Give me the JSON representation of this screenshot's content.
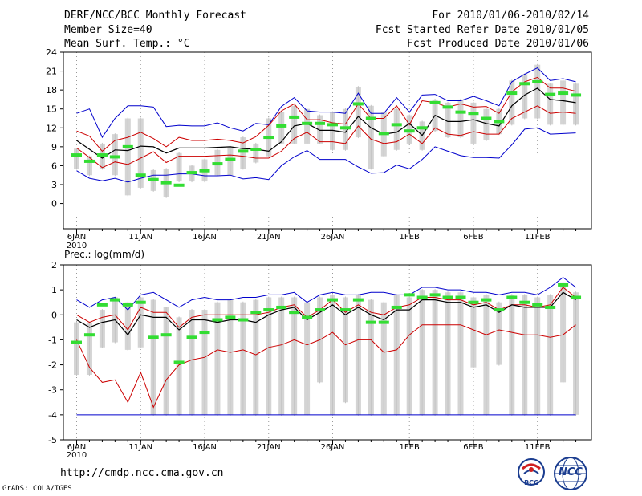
{
  "header": {
    "title": "DERF/NCC/BCC Monthly Forecast",
    "member_size": "Member Size=40",
    "variable": "Mean Surf. Temp.: °C",
    "period": "For 2010/01/06-2010/02/14",
    "start_date": "Fcst Started Refer Date 2010/01/05",
    "produced_date": "Fcst Produced Date 2010/01/06"
  },
  "footer": {
    "url": "http://cmdp.ncc.cma.gov.cn",
    "credit": "GrADS: COLA/IGES",
    "logo_bcc": "BCC",
    "logo_ncc": "NCC"
  },
  "colors": {
    "envelope": "#0000cc",
    "spread": "#cc0000",
    "mean": "#000000",
    "box": "#d4d4d4",
    "marker": "#33dd33"
  },
  "chart_data": [
    {
      "type": "line",
      "title": "Mean Surf. Temp.: °C",
      "x_tick_labels": [
        "6JAN",
        "11JAN",
        "16JAN",
        "21JAN",
        "26JAN",
        "1FEB",
        "6FEB",
        "11FEB"
      ],
      "x_tick_days": [
        0,
        5,
        10,
        15,
        20,
        26,
        31,
        36
      ],
      "x_year_label": "2010",
      "x_range": [
        -1,
        39.5
      ],
      "ylim": [
        -4,
        24
      ],
      "y_ticks": [
        0,
        3,
        6,
        9,
        12,
        15,
        18,
        21,
        24
      ],
      "days": [
        0,
        1,
        2,
        3,
        4,
        5,
        6,
        7,
        8,
        9,
        10,
        11,
        12,
        13,
        14,
        15,
        16,
        17,
        18,
        19,
        20,
        21,
        22,
        23,
        24,
        25,
        26,
        27,
        28,
        29,
        30,
        31,
        32,
        33,
        34,
        35,
        36,
        37,
        38,
        39
      ],
      "series": [
        {
          "name": "max",
          "color": "blue",
          "values": [
            14.3,
            15,
            10.5,
            13.5,
            15.5,
            15.5,
            15.3,
            12.2,
            12.4,
            12.3,
            12.3,
            12.8,
            12,
            11.5,
            12.7,
            12.5,
            15.4,
            16.8,
            14.7,
            14.5,
            14.5,
            14.3,
            17.5,
            14.3,
            14.3,
            16.8,
            14.5,
            17.2,
            17.3,
            16.3,
            16.3,
            17,
            16.3,
            15.5,
            19.3,
            20.5,
            21.5,
            19.5,
            19.8,
            19.3
          ]
        },
        {
          "name": "upper",
          "color": "red",
          "values": [
            11.5,
            10.7,
            8.3,
            10,
            10.5,
            11.3,
            10.3,
            9,
            10.5,
            10,
            10,
            10.2,
            10,
            9.6,
            10.6,
            12.4,
            14.7,
            15.8,
            13.3,
            13.3,
            12.8,
            12.6,
            15.8,
            13.5,
            13.5,
            15.5,
            12.5,
            16.3,
            16,
            15.3,
            15.8,
            15.3,
            15.4,
            14.3,
            17.7,
            19.3,
            20,
            18.3,
            18.3,
            17.8
          ]
        },
        {
          "name": "mean",
          "color": "black",
          "values": [
            10,
            8.6,
            7.2,
            8.5,
            8.4,
            9.1,
            9,
            8,
            8.8,
            8.8,
            8.8,
            8.9,
            9,
            8.7,
            8.6,
            8.3,
            9.8,
            12.3,
            12.7,
            11.6,
            11.6,
            11.3,
            13.8,
            12,
            11,
            11.3,
            12.7,
            10.8,
            14,
            13,
            13,
            13.3,
            12.7,
            12.3,
            15.5,
            17.2,
            18.3,
            16.5,
            16.3,
            16
          ]
        },
        {
          "name": "lower",
          "color": "red",
          "values": [
            8.8,
            7.3,
            5.7,
            6.6,
            6.2,
            7.2,
            8.2,
            6.5,
            7.5,
            7.5,
            7.5,
            7.6,
            7.7,
            7.5,
            7.2,
            7.2,
            8.3,
            10.3,
            11.3,
            9.8,
            9.8,
            9.5,
            12.3,
            10.2,
            9.5,
            9.8,
            11,
            9.5,
            12,
            11,
            10.8,
            11.4,
            11,
            11,
            13.5,
            14.5,
            15.5,
            14.3,
            14.5,
            14.3
          ]
        },
        {
          "name": "min",
          "color": "blue",
          "values": [
            5.2,
            4,
            3.6,
            4,
            3.4,
            4,
            4.5,
            4.5,
            4.7,
            4.7,
            4.4,
            4.4,
            4.5,
            3.9,
            4.1,
            3.8,
            6,
            7.4,
            8.4,
            7,
            7,
            7,
            5.8,
            4.8,
            4.9,
            6.1,
            5.5,
            7,
            9,
            8.3,
            7.6,
            7.3,
            7.3,
            7.2,
            9.3,
            11.8,
            12,
            11,
            11.1,
            11.2
          ]
        },
        {
          "name": "observed_marker",
          "color": "green",
          "values": [
            7.7,
            6.7,
            7.7,
            7.4,
            9,
            4.5,
            3.8,
            3.3,
            2.9,
            4.9,
            5.2,
            6.3,
            7,
            8.3,
            8.6,
            10.5,
            12.3,
            13.7,
            12.7,
            12.7,
            12.5,
            12,
            15.8,
            13.5,
            11.1,
            12.5,
            11.5,
            12,
            16,
            15.3,
            14.5,
            14.3,
            13.5,
            13,
            17.5,
            19,
            19.3,
            17.3,
            17.5,
            17.2
          ]
        }
      ],
      "boxes": [
        {
          "day": 0,
          "low": 5.5,
          "high": 8.7
        },
        {
          "day": 1,
          "low": 4.5,
          "high": 7.5
        },
        {
          "day": 2,
          "low": 5.5,
          "high": 9.5
        },
        {
          "day": 3,
          "low": 4.5,
          "high": 11
        },
        {
          "day": 4,
          "low": 1.3,
          "high": 13.5
        },
        {
          "day": 5,
          "low": 2.5,
          "high": 13.5
        },
        {
          "day": 6,
          "low": 2,
          "high": 5.3
        },
        {
          "day": 7,
          "low": 1,
          "high": 5.5
        },
        {
          "day": 8,
          "low": 3.5,
          "high": 8
        },
        {
          "day": 9,
          "low": 3.5,
          "high": 6
        },
        {
          "day": 10,
          "low": 3.5,
          "high": 7
        },
        {
          "day": 11,
          "low": 4.5,
          "high": 8.5
        },
        {
          "day": 12,
          "low": 4.5,
          "high": 9
        },
        {
          "day": 13,
          "low": 5.5,
          "high": 10.5
        },
        {
          "day": 14,
          "low": 6.5,
          "high": 9.5
        },
        {
          "day": 15,
          "low": 7.5,
          "high": 13.5
        },
        {
          "day": 16,
          "low": 9.5,
          "high": 14.5
        },
        {
          "day": 17,
          "low": 9.5,
          "high": 15.5
        },
        {
          "day": 18,
          "low": 9.5,
          "high": 15
        },
        {
          "day": 19,
          "low": 9.5,
          "high": 14
        },
        {
          "day": 20,
          "low": 8.5,
          "high": 14.5
        },
        {
          "day": 21,
          "low": 8.5,
          "high": 15
        },
        {
          "day": 22,
          "low": 10.5,
          "high": 18.5
        },
        {
          "day": 23,
          "low": 5.5,
          "high": 15.5
        },
        {
          "day": 24,
          "low": 7.5,
          "high": 14.5
        },
        {
          "day": 25,
          "low": 8.5,
          "high": 15
        },
        {
          "day": 26,
          "low": 9.5,
          "high": 14
        },
        {
          "day": 27,
          "low": 8.5,
          "high": 13
        },
        {
          "day": 28,
          "low": 11.5,
          "high": 16.5
        },
        {
          "day": 29,
          "low": 10.5,
          "high": 16
        },
        {
          "day": 30,
          "low": 10.5,
          "high": 16.5
        },
        {
          "day": 31,
          "low": 9.5,
          "high": 16
        },
        {
          "day": 32,
          "low": 10,
          "high": 15
        },
        {
          "day": 33,
          "low": 11,
          "high": 15
        },
        {
          "day": 34,
          "low": 12.5,
          "high": 19.5
        },
        {
          "day": 35,
          "low": 13.5,
          "high": 20.5
        },
        {
          "day": 36,
          "low": 13.5,
          "high": 22
        },
        {
          "day": 37,
          "low": 12.5,
          "high": 19
        },
        {
          "day": 38,
          "low": 12.5,
          "high": 19.5
        },
        {
          "day": 39,
          "low": 12.5,
          "high": 19
        }
      ]
    },
    {
      "type": "line",
      "title": "Prec.: log(mm/d)",
      "x_tick_labels": [
        "6JAN",
        "11JAN",
        "16JAN",
        "21JAN",
        "26JAN",
        "1FEB",
        "6FEB",
        "11FEB"
      ],
      "x_tick_days": [
        0,
        5,
        10,
        15,
        20,
        26,
        31,
        36
      ],
      "x_year_label": "2010",
      "x_range": [
        -1,
        39.5
      ],
      "ylim": [
        -5,
        2
      ],
      "y_ticks": [
        -5,
        -4,
        -3,
        -2,
        -1,
        0,
        1,
        2
      ],
      "days": [
        0,
        1,
        2,
        3,
        4,
        5,
        6,
        7,
        8,
        9,
        10,
        11,
        12,
        13,
        14,
        15,
        16,
        17,
        18,
        19,
        20,
        21,
        22,
        23,
        24,
        25,
        26,
        27,
        28,
        29,
        30,
        31,
        32,
        33,
        34,
        35,
        36,
        37,
        38,
        39
      ],
      "series": [
        {
          "name": "max",
          "color": "blue",
          "values": [
            0.6,
            0.3,
            0.6,
            0.7,
            0.2,
            0.8,
            0.9,
            0.6,
            0.3,
            0.6,
            0.7,
            0.6,
            0.6,
            0.7,
            0.7,
            0.8,
            0.8,
            0.9,
            0.5,
            0.8,
            0.9,
            0.8,
            0.8,
            0.9,
            0.9,
            0.8,
            0.8,
            1.1,
            1.1,
            1,
            1,
            0.9,
            0.9,
            0.8,
            0.9,
            0.9,
            0.8,
            1.1,
            1.5,
            1.1
          ]
        },
        {
          "name": "upper",
          "color": "red",
          "values": [
            0,
            -0.3,
            -0.1,
            0,
            -0.6,
            0.3,
            0.1,
            0.1,
            -0.5,
            -0.1,
            0,
            0,
            0,
            0,
            0,
            0.1,
            0.3,
            0.4,
            -0.1,
            0.2,
            0.6,
            0.1,
            0.4,
            0.1,
            0,
            0.3,
            0.4,
            0.7,
            0.7,
            0.6,
            0.6,
            0.4,
            0.5,
            0.2,
            0.4,
            0.4,
            0.3,
            0.4,
            1.1,
            0.7
          ]
        },
        {
          "name": "mean",
          "color": "black",
          "values": [
            -0.2,
            -0.5,
            -0.3,
            -0.2,
            -0.8,
            0,
            -0.1,
            -0.1,
            -0.6,
            -0.2,
            -0.2,
            -0.3,
            -0.2,
            -0.2,
            -0.3,
            0,
            0.2,
            0.3,
            -0.2,
            0.1,
            0.4,
            0,
            0.3,
            0,
            -0.2,
            0.2,
            0.2,
            0.6,
            0.6,
            0.5,
            0.5,
            0.3,
            0.4,
            0.1,
            0.4,
            0.3,
            0.3,
            0.3,
            0.9,
            0.6
          ]
        },
        {
          "name": "lower",
          "color": "red",
          "values": [
            -1,
            -2.1,
            -2.7,
            -2.6,
            -3.5,
            -2.3,
            -3.7,
            -2.6,
            -2,
            -1.8,
            -1.7,
            -1.4,
            -1.5,
            -1.4,
            -1.6,
            -1.3,
            -1.2,
            -1,
            -1.2,
            -1,
            -0.7,
            -1.2,
            -1,
            -1,
            -1.5,
            -1.4,
            -0.8,
            -0.4,
            -0.4,
            -0.4,
            -0.4,
            -0.6,
            -0.8,
            -0.6,
            -0.7,
            -0.8,
            -0.8,
            -0.9,
            -0.8,
            -0.4
          ]
        },
        {
          "name": "min",
          "color": "blue",
          "values": [
            -4,
            -4,
            -4,
            -4,
            -4,
            -4,
            -4,
            -4,
            -4,
            -4,
            -4,
            -4,
            -4,
            -4,
            -4,
            -4,
            -4,
            -4,
            -4,
            -4,
            -4,
            -4,
            -4,
            -4,
            -4,
            -4,
            -4,
            -4,
            -4,
            -4,
            -4,
            -4,
            -4,
            -4,
            -4,
            -4,
            -4,
            -4,
            -4,
            -4
          ]
        },
        {
          "name": "observed_marker",
          "color": "green",
          "values": [
            -1.1,
            -0.8,
            0.4,
            0.6,
            0.4,
            0.5,
            -0.9,
            -0.8,
            -1.9,
            -0.9,
            -0.7,
            -0.2,
            -0.1,
            -0.2,
            0.1,
            0.2,
            0.3,
            0.1,
            -0.1,
            0.2,
            0.6,
            0.2,
            0.6,
            -0.3,
            -0.3,
            0.3,
            0.8,
            0.7,
            0.8,
            0.7,
            0.7,
            0.5,
            0.6,
            0.2,
            0.7,
            0.5,
            0.4,
            0.3,
            1.2,
            0.7
          ]
        }
      ],
      "boxes": [
        {
          "day": 0,
          "low": -2.4,
          "high": -0.3
        },
        {
          "day": 1,
          "low": -2.4,
          "high": -0.3
        },
        {
          "day": 2,
          "low": -1.3,
          "high": 0.2
        },
        {
          "day": 3,
          "low": -1.1,
          "high": 0.7
        },
        {
          "day": 4,
          "low": -1.4,
          "high": 0.5
        },
        {
          "day": 5,
          "low": -1.3,
          "high": 0.7
        },
        {
          "day": 6,
          "low": -4,
          "high": 0.6
        },
        {
          "day": 7,
          "low": -4,
          "high": 0.3
        },
        {
          "day": 8,
          "low": -4,
          "high": -0.1
        },
        {
          "day": 9,
          "low": -4,
          "high": 0.2
        },
        {
          "day": 10,
          "low": -4,
          "high": 0.2
        },
        {
          "day": 11,
          "low": -4,
          "high": 0.5
        },
        {
          "day": 12,
          "low": -4,
          "high": 0.6
        },
        {
          "day": 13,
          "low": -4,
          "high": 0.5
        },
        {
          "day": 14,
          "low": -4,
          "high": 0.6
        },
        {
          "day": 15,
          "low": -4,
          "high": 0.7
        },
        {
          "day": 16,
          "low": -4,
          "high": 0.7
        },
        {
          "day": 17,
          "low": -4,
          "high": 0.7
        },
        {
          "day": 18,
          "low": -4,
          "high": 0.5
        },
        {
          "day": 19,
          "low": -2.7,
          "high": 0.7
        },
        {
          "day": 20,
          "low": -4,
          "high": 0.8
        },
        {
          "day": 21,
          "low": -3.5,
          "high": 0.7
        },
        {
          "day": 22,
          "low": -4,
          "high": 0.8
        },
        {
          "day": 23,
          "low": -4,
          "high": 0.6
        },
        {
          "day": 24,
          "low": -4,
          "high": 0.5
        },
        {
          "day": 25,
          "low": -4,
          "high": 0.8
        },
        {
          "day": 26,
          "low": -4,
          "high": 0.7
        },
        {
          "day": 27,
          "low": -4,
          "high": 1
        },
        {
          "day": 28,
          "low": -4,
          "high": 1
        },
        {
          "day": 29,
          "low": -4,
          "high": 0.9
        },
        {
          "day": 30,
          "low": -4,
          "high": 0.9
        },
        {
          "day": 31,
          "low": -2.1,
          "high": 0.7
        },
        {
          "day": 32,
          "low": -4,
          "high": 0.8
        },
        {
          "day": 33,
          "low": -2,
          "high": 0.5
        },
        {
          "day": 34,
          "low": -4,
          "high": 0.8
        },
        {
          "day": 35,
          "low": -4,
          "high": 0.8
        },
        {
          "day": 36,
          "low": -4,
          "high": 0.7
        },
        {
          "day": 37,
          "low": -4,
          "high": 0.8
        },
        {
          "day": 38,
          "low": -2.7,
          "high": 1.3
        },
        {
          "day": 39,
          "low": -4,
          "high": 0.9
        }
      ]
    }
  ]
}
